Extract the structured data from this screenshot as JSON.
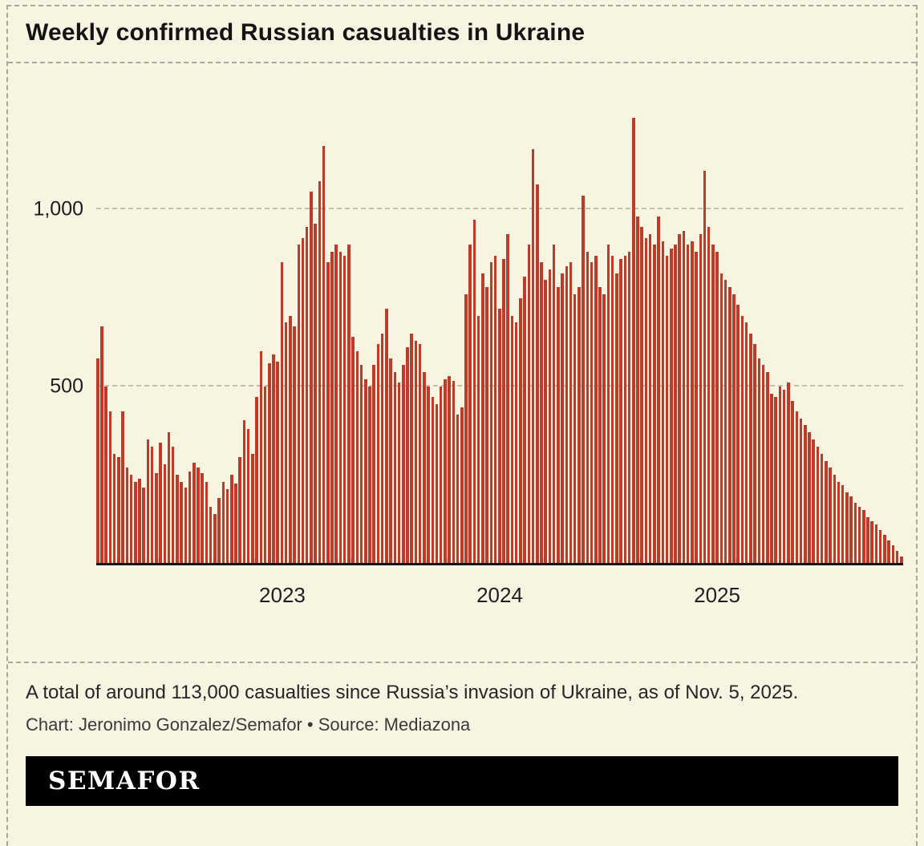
{
  "title": "Weekly confirmed Russian casualties in Ukraine",
  "caption": {
    "note": "A total of around 113,000 casualties since Russia’s invasion of Ukraine, as of Nov. 5, 2025.",
    "credit": "Chart: Jeronimo Gonzalez/Semafor • Source: Mediazona"
  },
  "footer": {
    "logo": "SEMAFOR"
  },
  "colors": {
    "background": "#f8f4e2",
    "bar": "#c03a29",
    "grid": "#c3bfad",
    "axis": "#141414",
    "dashed_border": "#aaa79a",
    "footer_bg": "#000000",
    "footer_text": "#ffffff"
  },
  "chart_data": {
    "type": "bar",
    "title": "Weekly confirmed Russian casualties in Ukraine",
    "xlabel": "",
    "ylabel": "",
    "x_unit": "week",
    "ylim": [
      0,
      1300
    ],
    "grid": "dashed-horizontal",
    "legend": "none",
    "yticks": [
      {
        "value": 500,
        "label": "500"
      },
      {
        "value": 1000,
        "label": "1,000"
      }
    ],
    "year_ticks": [
      {
        "label": "2023",
        "index": 44
      },
      {
        "label": "2024",
        "index": 96
      },
      {
        "label": "2025",
        "index": 148
      }
    ],
    "values": [
      580,
      670,
      500,
      430,
      310,
      300,
      430,
      270,
      250,
      230,
      240,
      215,
      350,
      330,
      255,
      340,
      280,
      370,
      330,
      250,
      230,
      215,
      260,
      285,
      270,
      255,
      230,
      160,
      140,
      185,
      230,
      210,
      250,
      225,
      300,
      405,
      380,
      310,
      470,
      600,
      500,
      565,
      590,
      570,
      850,
      680,
      700,
      670,
      900,
      920,
      950,
      1050,
      960,
      1080,
      1180,
      850,
      880,
      900,
      880,
      870,
      900,
      640,
      600,
      560,
      520,
      500,
      560,
      620,
      650,
      720,
      580,
      540,
      510,
      560,
      610,
      650,
      630,
      620,
      540,
      500,
      470,
      450,
      500,
      520,
      530,
      515,
      420,
      440,
      760,
      900,
      970,
      700,
      820,
      780,
      850,
      870,
      720,
      860,
      930,
      700,
      680,
      750,
      810,
      900,
      1170,
      1070,
      850,
      800,
      830,
      900,
      780,
      820,
      840,
      850,
      760,
      780,
      1040,
      880,
      850,
      870,
      780,
      760,
      900,
      870,
      820,
      860,
      870,
      880,
      1260,
      980,
      950,
      920,
      930,
      900,
      980,
      910,
      870,
      890,
      900,
      930,
      940,
      900,
      910,
      880,
      930,
      1110,
      950,
      900,
      880,
      820,
      800,
      780,
      760,
      730,
      700,
      680,
      650,
      620,
      580,
      560,
      540,
      480,
      470,
      500,
      490,
      510,
      460,
      430,
      410,
      390,
      370,
      350,
      330,
      310,
      290,
      270,
      250,
      230,
      220,
      200,
      190,
      170,
      160,
      150,
      130,
      120,
      110,
      95,
      80,
      65,
      50,
      35,
      20
    ]
  }
}
